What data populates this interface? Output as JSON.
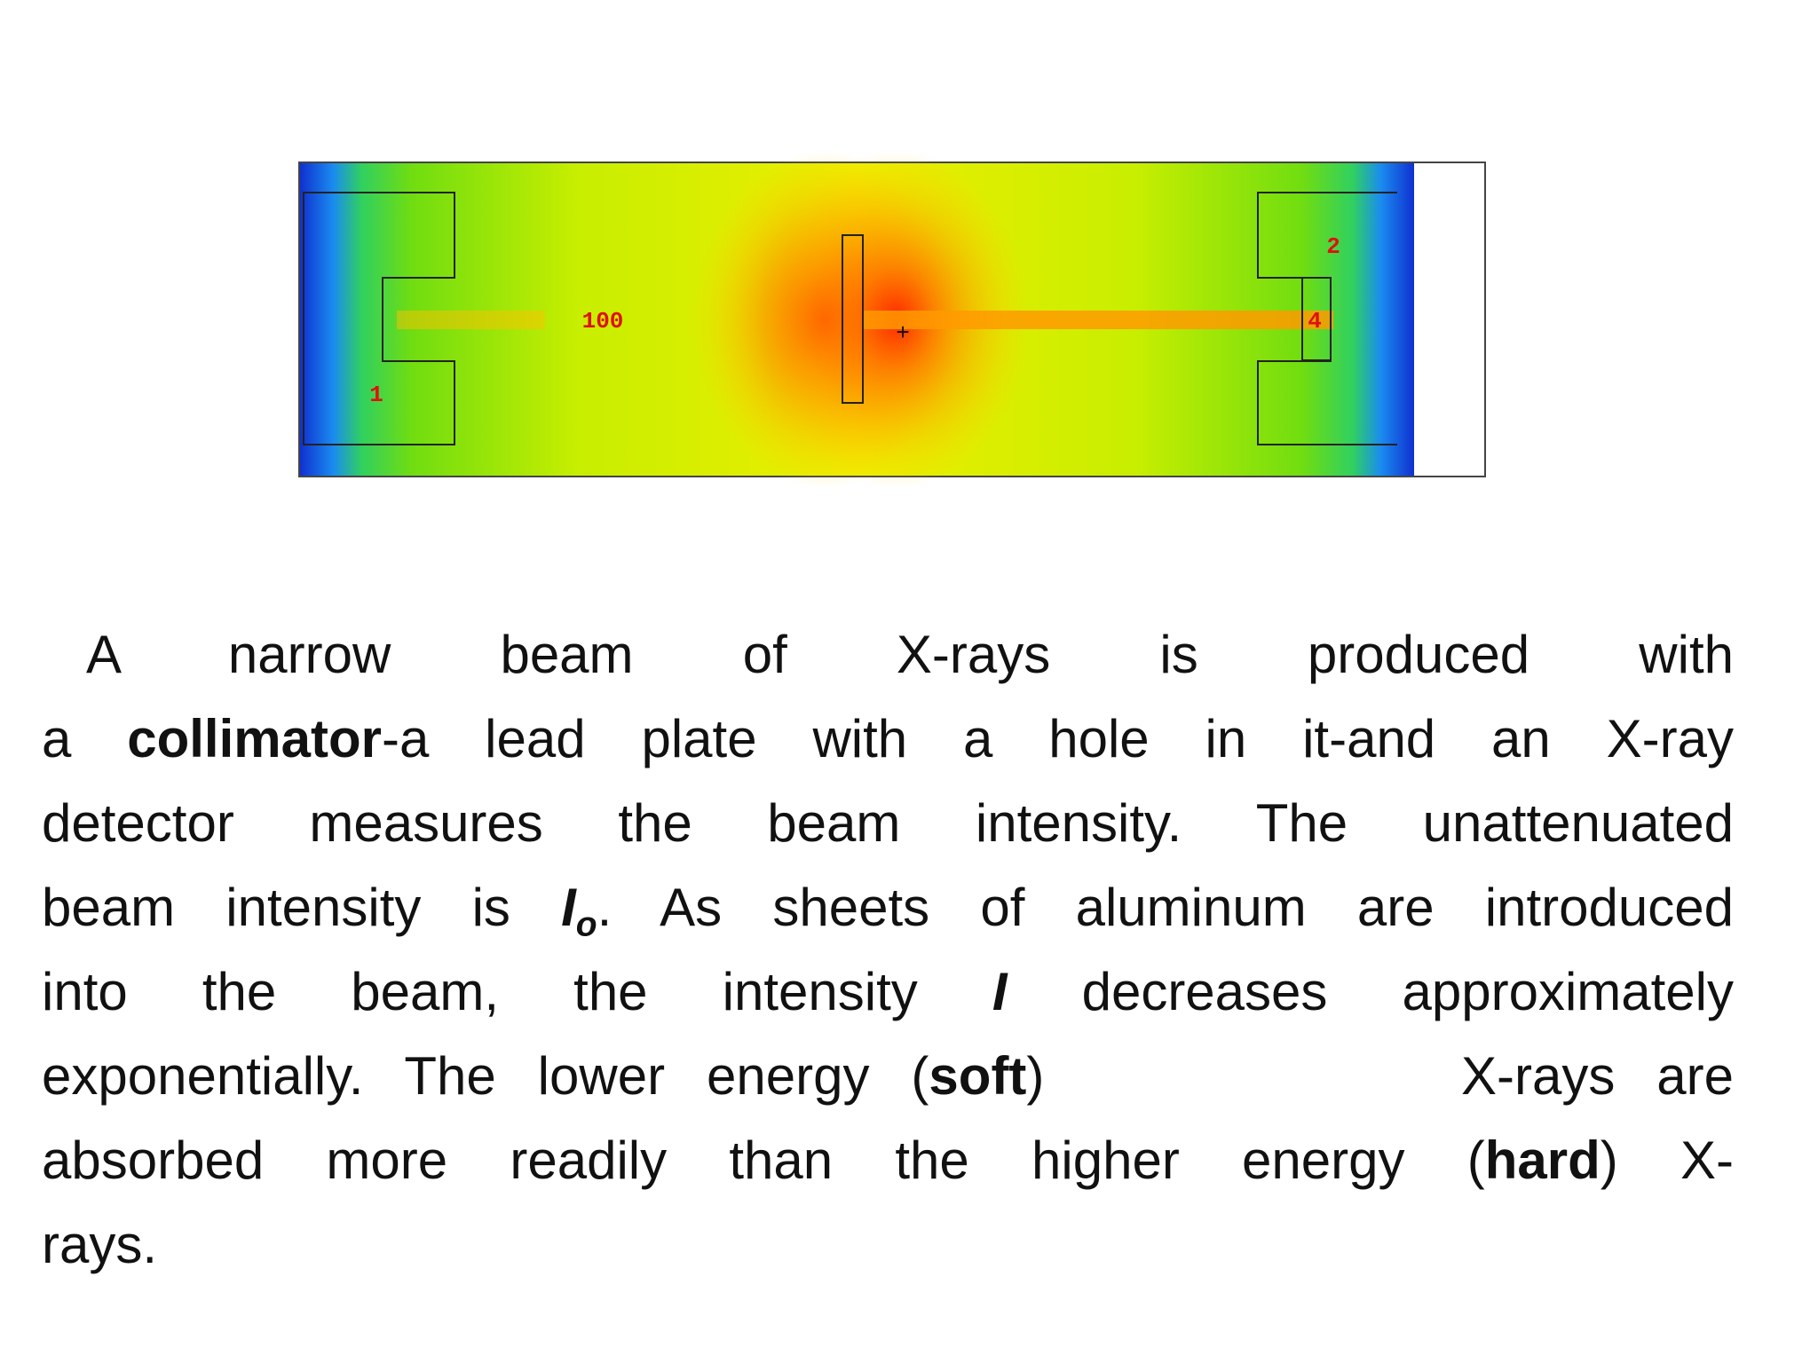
{
  "figure": {
    "labels": [
      "100",
      "1",
      "2",
      "4",
      "+"
    ]
  },
  "paragraph": {
    "lines": [
      [
        {
          "text": "A narrow beam of X-rays is produced with"
        }
      ],
      [
        {
          "text": "a "
        },
        {
          "text": "collimator",
          "bold": true
        },
        {
          "text": "-a lead plate with a hole in it-and an X-ray"
        }
      ],
      [
        {
          "text": "detector measures the beam intensity. The unattenuated"
        }
      ],
      [
        {
          "text": "beam intensity is "
        },
        {
          "text": "I",
          "bold": true,
          "italic": true
        },
        {
          "text": "o",
          "bold": true,
          "italic": true,
          "sub": true
        },
        {
          "text": ". As sheets of aluminum are introduced"
        }
      ],
      [
        {
          "text": "into the beam, the intensity "
        },
        {
          "text": "I",
          "bold": true,
          "italic": true
        },
        {
          "text": " decreases approximately"
        }
      ],
      [
        {
          "text": "exponentially. The lower energy ("
        },
        {
          "text": "soft",
          "bold": true
        },
        {
          "text": ")          X-rays are"
        }
      ],
      [
        {
          "text": "absorbed more readily than the higher energy ("
        },
        {
          "text": "hard",
          "bold": true
        },
        {
          "text": ") X-"
        }
      ],
      [
        {
          "text": "rays."
        }
      ]
    ]
  }
}
